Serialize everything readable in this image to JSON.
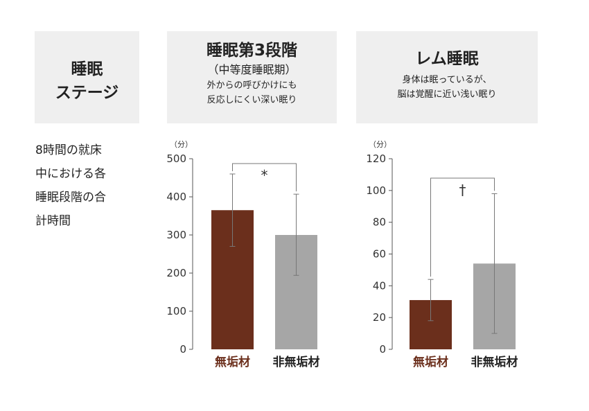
{
  "header": {
    "stage_line1": "睡眠",
    "stage_line2": "ステージ",
    "deep_title": "睡眠第3段階",
    "deep_subtitle": "（中等度睡眠期）",
    "deep_desc_line1": "外からの呼びかけにも",
    "deep_desc_line2": "反応しにくい深い眠り",
    "rem_title": "レム睡眠",
    "rem_desc_line1": "身体は眠っているが、",
    "rem_desc_line2": "脳は覚醒に近い浅い眠り"
  },
  "description": {
    "lines": [
      "8時間の就床",
      "中における各",
      "睡眠段階の合",
      "計時間"
    ]
  },
  "colors": {
    "brown": "#6b2f1c",
    "gray": "#a6a6a6",
    "box_bg": "#efefef"
  },
  "chart_data": [
    {
      "type": "bar",
      "ylabel": "（分）",
      "ylim": [
        0,
        500
      ],
      "yticks": [
        0,
        100,
        200,
        300,
        400,
        500
      ],
      "categories": [
        "無垢材",
        "非無垢材"
      ],
      "values": [
        365,
        300
      ],
      "error_upper": [
        460,
        407
      ],
      "error_lower": [
        270,
        194
      ],
      "significance": "*",
      "grid": false
    },
    {
      "type": "bar",
      "ylabel": "（分）",
      "ylim": [
        0,
        120
      ],
      "yticks": [
        0,
        20,
        40,
        60,
        80,
        100,
        120
      ],
      "categories": [
        "無垢材",
        "非無垢材"
      ],
      "values": [
        31,
        54
      ],
      "error_upper": [
        44,
        98
      ],
      "error_lower": [
        18,
        10
      ],
      "significance": "†",
      "grid": false
    }
  ]
}
